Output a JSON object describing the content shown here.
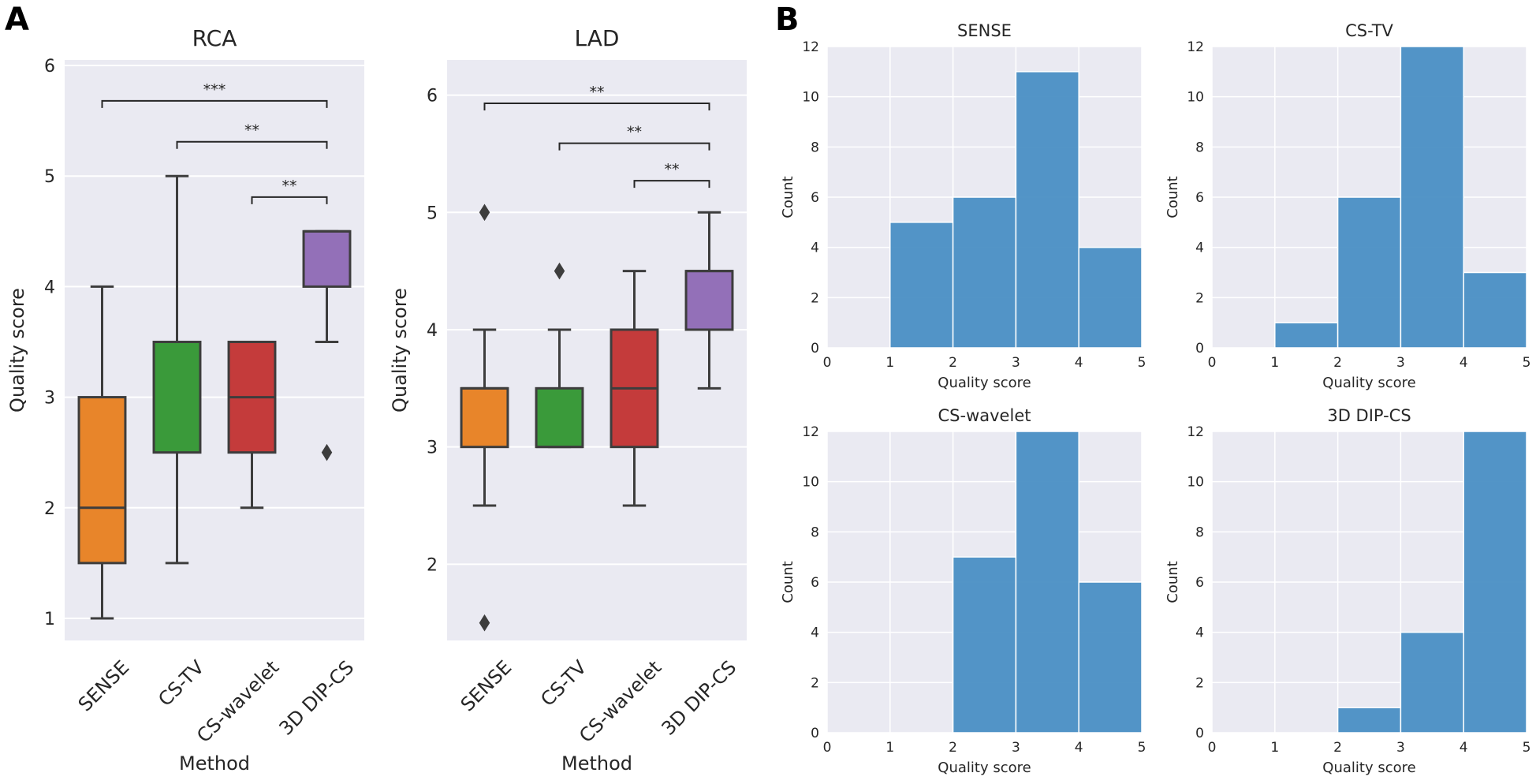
{
  "panels": {
    "a": "A",
    "b": "B"
  },
  "chart_data": [
    {
      "type": "box",
      "id": "rca",
      "title": "RCA",
      "xlabel": "Method",
      "ylabel": "Quality score",
      "ylim": [
        0.8,
        6.05
      ],
      "yticks": [
        1,
        2,
        3,
        4,
        5,
        6
      ],
      "categories": [
        "SENSE",
        "CS-TV",
        "CS-wavelet",
        "3D DIP-CS"
      ],
      "colors": [
        "#e8852a",
        "#3a9a3a",
        "#c43b3b",
        "#9370b8"
      ],
      "boxes": [
        {
          "min": 1,
          "q1": 1.5,
          "median": 2,
          "q3": 3,
          "max": 4,
          "outliers": []
        },
        {
          "min": 1.5,
          "q1": 2.5,
          "median": 3.5,
          "q3": 3.5,
          "max": 5,
          "outliers": []
        },
        {
          "min": 2,
          "q1": 2.5,
          "median": 3,
          "q3": 3.5,
          "max": 3.5,
          "outliers": []
        },
        {
          "min": 3.5,
          "q1": 4,
          "median": 4.5,
          "q3": 4.5,
          "max": 4.5,
          "outliers": [
            2.5
          ]
        }
      ],
      "significance": [
        {
          "from": 0,
          "to": 3,
          "y": 5.68,
          "label": "***"
        },
        {
          "from": 1,
          "to": 3,
          "y": 5.31,
          "label": "**"
        },
        {
          "from": 2,
          "to": 3,
          "y": 4.81,
          "label": "**"
        }
      ]
    },
    {
      "type": "box",
      "id": "lad",
      "title": "LAD",
      "xlabel": "Method",
      "ylabel": "Quality score",
      "ylim": [
        1.35,
        6.3
      ],
      "yticks": [
        2,
        3,
        4,
        5,
        6
      ],
      "categories": [
        "SENSE",
        "CS-TV",
        "CS-wavelet",
        "3D DIP-CS"
      ],
      "colors": [
        "#e8852a",
        "#3a9a3a",
        "#c43b3b",
        "#9370b8"
      ],
      "boxes": [
        {
          "min": 2.5,
          "q1": 3,
          "median": 3.5,
          "q3": 3.5,
          "max": 4,
          "outliers": [
            5,
            1.5
          ]
        },
        {
          "min": 3,
          "q1": 3,
          "median": 3,
          "q3": 3.5,
          "max": 4,
          "outliers": [
            4.5
          ]
        },
        {
          "min": 2.5,
          "q1": 3,
          "median": 3.5,
          "q3": 4,
          "max": 4.5,
          "outliers": []
        },
        {
          "min": 3.5,
          "q1": 4,
          "median": 4.5,
          "q3": 4.5,
          "max": 5,
          "outliers": []
        }
      ],
      "significance": [
        {
          "from": 0,
          "to": 3,
          "y": 5.93,
          "label": "**"
        },
        {
          "from": 1,
          "to": 3,
          "y": 5.59,
          "label": "**"
        },
        {
          "from": 2,
          "to": 3,
          "y": 5.27,
          "label": "**"
        }
      ]
    },
    {
      "type": "histogram",
      "id": "h-sense",
      "title": "SENSE",
      "xlabel": "Quality score",
      "ylabel": "Count",
      "xlim": [
        0,
        5
      ],
      "ylim": [
        0,
        12
      ],
      "xticks": [
        0,
        1,
        2,
        3,
        4,
        5
      ],
      "yticks": [
        0,
        2,
        4,
        6,
        8,
        10,
        12
      ],
      "bin_edges": [
        1,
        2,
        3,
        4,
        5
      ],
      "counts": [
        5,
        6,
        11,
        4
      ],
      "color": "#4a8fc4"
    },
    {
      "type": "histogram",
      "id": "h-cstv",
      "title": "CS-TV",
      "xlabel": "Quality score",
      "ylabel": "Count",
      "xlim": [
        0,
        5
      ],
      "ylim": [
        0,
        12
      ],
      "xticks": [
        0,
        1,
        2,
        3,
        4,
        5
      ],
      "yticks": [
        0,
        2,
        4,
        6,
        8,
        10,
        12
      ],
      "bin_edges": [
        1,
        2,
        3,
        4,
        5
      ],
      "counts": [
        1,
        6,
        12,
        3
      ],
      "color": "#4a8fc4"
    },
    {
      "type": "histogram",
      "id": "h-cswavelet",
      "title": "CS-wavelet",
      "xlabel": "Quality score",
      "ylabel": "Count",
      "xlim": [
        0,
        5
      ],
      "ylim": [
        0,
        12
      ],
      "xticks": [
        0,
        1,
        2,
        3,
        4,
        5
      ],
      "yticks": [
        0,
        2,
        4,
        6,
        8,
        10,
        12
      ],
      "bin_edges": [
        2,
        3,
        4,
        5
      ],
      "counts": [
        7,
        12,
        6
      ],
      "color": "#4a8fc4"
    },
    {
      "type": "histogram",
      "id": "h-dipcs",
      "title": "3D DIP-CS",
      "xlabel": "Quality score",
      "ylabel": "Count",
      "xlim": [
        0,
        5
      ],
      "ylim": [
        0,
        12
      ],
      "xticks": [
        0,
        1,
        2,
        3,
        4,
        5
      ],
      "yticks": [
        0,
        2,
        4,
        6,
        8,
        10,
        12
      ],
      "bin_edges": [
        2,
        3,
        4,
        5
      ],
      "counts": [
        1,
        4,
        12
      ],
      "color": "#4a8fc4"
    }
  ]
}
